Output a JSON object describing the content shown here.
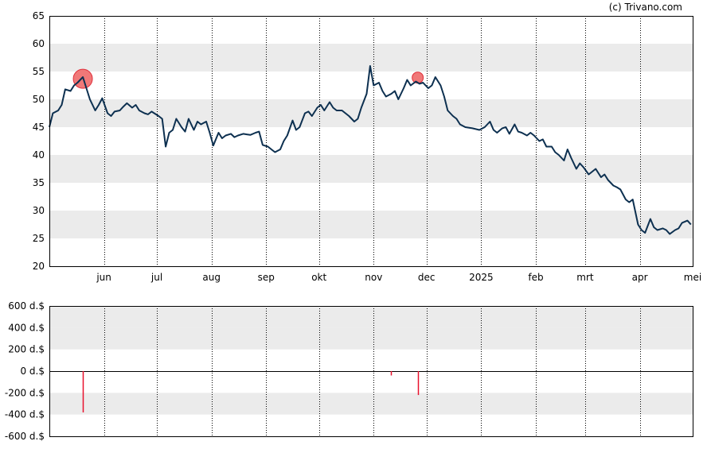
{
  "credit": "(c) Trivano.com",
  "colors": {
    "price_line": "#0d3050",
    "band": "#ebebeb",
    "volume_bar": "#e8112d",
    "marker_fill": "#f07878",
    "marker_stroke": "#e0303c"
  },
  "chart_data": [
    {
      "type": "line",
      "ylim": [
        20,
        65
      ],
      "yticks": [
        20,
        25,
        30,
        35,
        40,
        45,
        50,
        55,
        60,
        65
      ],
      "grid": "alternating horizontal bands, dotted vertical month lines",
      "month_ticks": [
        "jun",
        "jul",
        "aug",
        "sep",
        "okt",
        "nov",
        "dec",
        "2025",
        "feb",
        "mrt",
        "apr",
        "mei"
      ],
      "series": [
        {
          "points": [
            [
              "2024-05-01",
              45.0
            ],
            [
              "2024-05-03",
              47.5
            ],
            [
              "2024-05-06",
              48.0
            ],
            [
              "2024-05-08",
              49.0
            ],
            [
              "2024-05-10",
              51.8
            ],
            [
              "2024-05-13",
              51.5
            ],
            [
              "2024-05-15",
              52.5
            ],
            [
              "2024-05-17",
              53.0
            ],
            [
              "2024-05-20",
              54.0
            ],
            [
              "2024-05-22",
              52.0
            ],
            [
              "2024-05-24",
              50.0
            ],
            [
              "2024-05-27",
              48.0
            ],
            [
              "2024-05-29",
              49.0
            ],
            [
              "2024-05-31",
              50.2
            ],
            [
              "2024-06-03",
              47.5
            ],
            [
              "2024-06-05",
              47.0
            ],
            [
              "2024-06-07",
              47.8
            ],
            [
              "2024-06-10",
              48.0
            ],
            [
              "2024-06-12",
              48.7
            ],
            [
              "2024-06-14",
              49.3
            ],
            [
              "2024-06-17",
              48.5
            ],
            [
              "2024-06-19",
              49.0
            ],
            [
              "2024-06-21",
              48.0
            ],
            [
              "2024-06-24",
              47.5
            ],
            [
              "2024-06-26",
              47.3
            ],
            [
              "2024-06-28",
              47.8
            ],
            [
              "2024-07-02",
              47.0
            ],
            [
              "2024-07-04",
              46.5
            ],
            [
              "2024-07-06",
              41.5
            ],
            [
              "2024-07-08",
              44.0
            ],
            [
              "2024-07-10",
              44.5
            ],
            [
              "2024-07-12",
              46.5
            ],
            [
              "2024-07-15",
              45.0
            ],
            [
              "2024-07-17",
              44.2
            ],
            [
              "2024-07-19",
              46.5
            ],
            [
              "2024-07-22",
              44.5
            ],
            [
              "2024-07-24",
              46.0
            ],
            [
              "2024-07-26",
              45.5
            ],
            [
              "2024-07-29",
              46.0
            ],
            [
              "2024-07-31",
              44.0
            ],
            [
              "2024-08-02",
              41.7
            ],
            [
              "2024-08-05",
              44.0
            ],
            [
              "2024-08-07",
              43.0
            ],
            [
              "2024-08-09",
              43.5
            ],
            [
              "2024-08-12",
              43.8
            ],
            [
              "2024-08-14",
              43.2
            ],
            [
              "2024-08-16",
              43.5
            ],
            [
              "2024-08-19",
              43.8
            ],
            [
              "2024-08-21",
              43.7
            ],
            [
              "2024-08-23",
              43.6
            ],
            [
              "2024-08-26",
              44.0
            ],
            [
              "2024-08-28",
              44.2
            ],
            [
              "2024-08-30",
              41.8
            ],
            [
              "2024-09-02",
              41.5
            ],
            [
              "2024-09-04",
              41.0
            ],
            [
              "2024-09-06",
              40.5
            ],
            [
              "2024-09-09",
              41.0
            ],
            [
              "2024-09-11",
              42.5
            ],
            [
              "2024-09-13",
              43.5
            ],
            [
              "2024-09-16",
              46.2
            ],
            [
              "2024-09-18",
              44.5
            ],
            [
              "2024-09-20",
              45.0
            ],
            [
              "2024-09-23",
              47.5
            ],
            [
              "2024-09-25",
              47.8
            ],
            [
              "2024-09-27",
              47.0
            ],
            [
              "2024-09-30",
              48.5
            ],
            [
              "2024-10-02",
              49.0
            ],
            [
              "2024-10-04",
              48.0
            ],
            [
              "2024-10-07",
              49.5
            ],
            [
              "2024-10-09",
              48.5
            ],
            [
              "2024-10-11",
              48.0
            ],
            [
              "2024-10-14",
              48.0
            ],
            [
              "2024-10-16",
              47.5
            ],
            [
              "2024-10-18",
              47.0
            ],
            [
              "2024-10-21",
              46.0
            ],
            [
              "2024-10-23",
              46.5
            ],
            [
              "2024-10-25",
              48.5
            ],
            [
              "2024-10-28",
              51.0
            ],
            [
              "2024-10-30",
              56.0
            ],
            [
              "2024-11-01",
              52.5
            ],
            [
              "2024-11-04",
              53.0
            ],
            [
              "2024-11-06",
              51.5
            ],
            [
              "2024-11-08",
              50.5
            ],
            [
              "2024-11-11",
              51.0
            ],
            [
              "2024-11-13",
              51.5
            ],
            [
              "2024-11-15",
              50.0
            ],
            [
              "2024-11-18",
              52.0
            ],
            [
              "2024-11-20",
              53.5
            ],
            [
              "2024-11-22",
              52.5
            ],
            [
              "2024-11-25",
              53.2
            ],
            [
              "2024-11-27",
              52.8
            ],
            [
              "2024-11-29",
              53.0
            ],
            [
              "2024-12-02",
              52.0
            ],
            [
              "2024-12-04",
              52.5
            ],
            [
              "2024-12-06",
              54.0
            ],
            [
              "2024-12-09",
              52.5
            ],
            [
              "2024-12-11",
              50.5
            ],
            [
              "2024-12-13",
              48.0
            ],
            [
              "2024-12-16",
              47.0
            ],
            [
              "2024-12-18",
              46.5
            ],
            [
              "2024-12-20",
              45.5
            ],
            [
              "2024-12-23",
              45.0
            ],
            [
              "2024-12-27",
              44.8
            ],
            [
              "2024-12-31",
              44.5
            ],
            [
              "2025-01-03",
              45.0
            ],
            [
              "2025-01-06",
              46.0
            ],
            [
              "2025-01-08",
              44.5
            ],
            [
              "2025-01-10",
              44.0
            ],
            [
              "2025-01-13",
              44.8
            ],
            [
              "2025-01-15",
              45.0
            ],
            [
              "2025-01-17",
              43.8
            ],
            [
              "2025-01-20",
              45.5
            ],
            [
              "2025-01-22",
              44.2
            ],
            [
              "2025-01-24",
              44.0
            ],
            [
              "2025-01-27",
              43.5
            ],
            [
              "2025-01-29",
              44.0
            ],
            [
              "2025-01-31",
              43.5
            ],
            [
              "2025-02-03",
              42.5
            ],
            [
              "2025-02-05",
              42.8
            ],
            [
              "2025-02-07",
              41.5
            ],
            [
              "2025-02-10",
              41.5
            ],
            [
              "2025-02-12",
              40.5
            ],
            [
              "2025-02-14",
              40.0
            ],
            [
              "2025-02-17",
              39.0
            ],
            [
              "2025-02-19",
              41.0
            ],
            [
              "2025-02-21",
              39.5
            ],
            [
              "2025-02-24",
              37.5
            ],
            [
              "2025-02-26",
              38.5
            ],
            [
              "2025-02-28",
              37.8
            ],
            [
              "2025-03-03",
              36.5
            ],
            [
              "2025-03-05",
              37.0
            ],
            [
              "2025-03-07",
              37.5
            ],
            [
              "2025-03-10",
              36.0
            ],
            [
              "2025-03-12",
              36.5
            ],
            [
              "2025-03-14",
              35.5
            ],
            [
              "2025-03-17",
              34.5
            ],
            [
              "2025-03-19",
              34.2
            ],
            [
              "2025-03-21",
              33.8
            ],
            [
              "2025-03-24",
              32.0
            ],
            [
              "2025-03-26",
              31.5
            ],
            [
              "2025-03-28",
              32.0
            ],
            [
              "2025-03-31",
              27.5
            ],
            [
              "2025-04-02",
              26.5
            ],
            [
              "2025-04-04",
              26.0
            ],
            [
              "2025-04-07",
              28.5
            ],
            [
              "2025-04-09",
              27.0
            ],
            [
              "2025-04-11",
              26.5
            ],
            [
              "2025-04-14",
              26.8
            ],
            [
              "2025-04-16",
              26.5
            ],
            [
              "2025-04-18",
              25.8
            ],
            [
              "2025-04-21",
              26.5
            ],
            [
              "2025-04-23",
              26.8
            ],
            [
              "2025-04-25",
              27.8
            ],
            [
              "2025-04-28",
              28.2
            ],
            [
              "2025-04-30",
              27.5
            ]
          ]
        }
      ],
      "annotations": [
        {
          "type": "circle-marker",
          "x": "2024-05-20",
          "y": 53.7,
          "size": "large"
        },
        {
          "type": "circle-marker",
          "x": "2024-11-26",
          "y": 53.9,
          "size": "small"
        }
      ]
    },
    {
      "type": "bar",
      "ylim": [
        -600,
        600
      ],
      "yticks": [
        -600,
        -400,
        -200,
        0,
        200,
        400,
        600
      ],
      "ytick_labels": [
        "-600 d.$",
        "-400 d.$",
        "-200 d.$",
        "0 d.$",
        "200 d.$",
        "400 d.$",
        "600 d.$"
      ],
      "series": [
        {
          "points": [
            [
              "2024-05-20",
              -380
            ],
            [
              "2024-11-11",
              -40
            ],
            [
              "2024-11-26",
              -220
            ]
          ]
        }
      ]
    }
  ]
}
